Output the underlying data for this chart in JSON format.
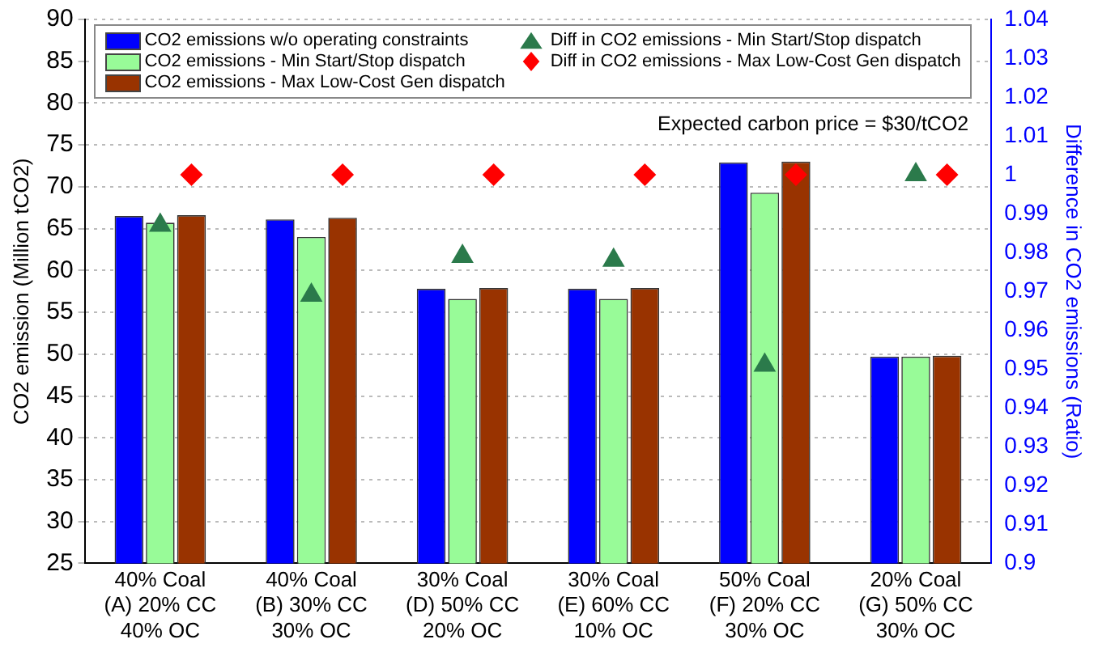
{
  "chart_data": {
    "type": "bar",
    "categories": [
      "40% Coal\n(A) 20% CC\n40% OC",
      "40% Coal\n(B) 30% CC\n30% OC",
      "30% Coal\n(D) 50% CC\n20% OC",
      "30% Coal\n(E) 60% CC\n10% OC",
      "50% Coal\n(F) 20% CC\n30% OC",
      "20% Coal\n(G) 50% CC\n30% OC"
    ],
    "series": [
      {
        "name": "CO2 emissions w/o operating constraints",
        "color": "#0000ff",
        "values": [
          66.5,
          66.1,
          57.8,
          57.8,
          72.9,
          49.7
        ]
      },
      {
        "name": "CO2 emissions - Min Start/Stop dispatch",
        "color": "#98fb98",
        "values": [
          65.7,
          64.0,
          56.6,
          56.6,
          69.3,
          49.7
        ]
      },
      {
        "name": "CO2 emissions - Max Low-Cost Gen dispatch",
        "color": "#993300",
        "values": [
          66.6,
          66.3,
          57.9,
          57.9,
          73.0,
          49.8
        ]
      },
      {
        "name": "Diff in CO2 emissions - Min Start/Stop dispatch",
        "type": "scatter",
        "axis": "y2",
        "marker": "triangle",
        "color": "#2b7a4b",
        "x": [
          "40% Coal\n(A) 20% CC\n40% OC",
          "40% Coal\n(B) 30% CC\n30% OC",
          "30% Coal\n(D) 50% CC\n20% OC",
          "30% Coal\n(E) 60% CC\n10% OC",
          "50% Coal\n(F) 20% CC\n30% OC",
          "20% Coal\n(G) 50% CC\n30% OC"
        ],
        "values": [
          0.987,
          0.969,
          0.979,
          0.978,
          0.951,
          1.0
        ]
      },
      {
        "name": "Diff in CO2 emissions - Max Low-Cost Gen dispatch",
        "type": "scatter",
        "axis": "y2",
        "marker": "diamond",
        "color": "#ff0000",
        "x": [
          "40% Coal\n(A) 20% CC\n40% OC",
          "40% Coal\n(B) 30% CC\n30% OC",
          "30% Coal\n(D) 50% CC\n20% OC",
          "30% Coal\n(E) 60% CC\n10% OC",
          "50% Coal\n(F) 20% CC\n30% OC",
          "20% Coal\n(G) 50% CC\n30% OC"
        ],
        "values": [
          1.0,
          1.0,
          1.0,
          1.0,
          1.0,
          1.0
        ]
      }
    ],
    "ylabel": "CO2 emission (Million tCO2)",
    "y2label": "Difference in CO2 emissions (Ratio)",
    "ylim": [
      25,
      90
    ],
    "yticks": [
      25,
      30,
      35,
      40,
      45,
      50,
      55,
      60,
      65,
      70,
      75,
      80,
      85,
      90
    ],
    "y2lim": [
      0.9,
      1.04
    ],
    "y2ticks": [
      0.9,
      0.91,
      0.92,
      0.93,
      0.94,
      0.95,
      0.96,
      0.97,
      0.98,
      0.99,
      1,
      1.01,
      1.02,
      1.03,
      1.04
    ],
    "annotations": [
      "Expected carbon price = $30/tCO2"
    ],
    "grid": "y",
    "legend": "top"
  }
}
